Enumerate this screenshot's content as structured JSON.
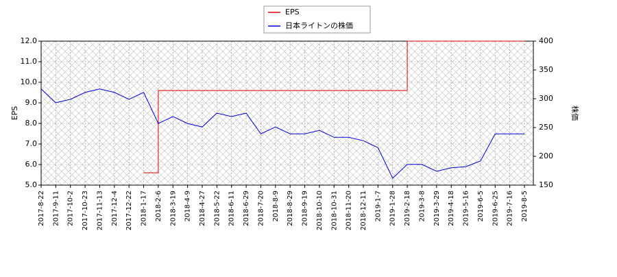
{
  "chart_data": {
    "type": "line",
    "categories": [
      "2017-8-22",
      "2017-9-11",
      "2017-10-2",
      "2017-10-23",
      "2017-11-13",
      "2017-12-4",
      "2017-12-22",
      "2018-1-17",
      "2018-2-6",
      "2018-3-19",
      "2018-4-9",
      "2018-4-27",
      "2018-5-22",
      "2018-6-11",
      "2018-6-29",
      "2018-7-20",
      "2018-8-9",
      "2018-8-29",
      "2018-9-19",
      "2018-10-10",
      "2018-10-31",
      "2018-11-20",
      "2018-12-11",
      "2019-1-7",
      "2019-1-28",
      "2019-2-18",
      "2019-3-8",
      "2019-3-29",
      "2019-4-18",
      "2019-5-16",
      "2019-6-5",
      "2019-6-25",
      "2019-7-16",
      "2019-8-5"
    ],
    "y_label": "EPS",
    "y2_label": "株価",
    "ylim": [
      5,
      12
    ],
    "yticks": [
      {
        "value": 5,
        "label": "5.0"
      },
      {
        "value": 6,
        "label": "6.0"
      },
      {
        "value": 7,
        "label": "7.0"
      },
      {
        "value": 8,
        "label": "8.0"
      },
      {
        "value": 9,
        "label": "9.0"
      },
      {
        "value": 10,
        "label": "10.0"
      },
      {
        "value": 11,
        "label": "11.0"
      },
      {
        "value": 12,
        "label": "12.0"
      }
    ],
    "y2lim": [
      150,
      400
    ],
    "y2ticks": [
      150,
      200,
      250,
      300,
      350,
      400
    ],
    "grid": true,
    "legend": "top",
    "series": [
      {
        "name": "EPS",
        "color": "#dd0000",
        "step": true,
        "values": [
          null,
          null,
          null,
          null,
          null,
          null,
          null,
          5.6,
          9.6,
          9.6,
          9.6,
          9.6,
          9.6,
          9.6,
          9.6,
          9.6,
          9.6,
          9.6,
          9.6,
          9.6,
          9.6,
          9.6,
          9.6,
          9.6,
          9.6,
          12.0,
          12.0,
          12.0,
          12.0,
          12.0,
          12.0,
          12.0,
          12.0,
          12.0
        ]
      },
      {
        "name": "日本ライトンの株価",
        "color": "#0000dd",
        "axis": "y2",
        "values": [
          317,
          293,
          299,
          311,
          317,
          311,
          299,
          311,
          257,
          269,
          257,
          251,
          275,
          269,
          275,
          239,
          251,
          239,
          239,
          245,
          233,
          233,
          227,
          215,
          162,
          186,
          186,
          174,
          180,
          182,
          192,
          239,
          239,
          239
        ]
      }
    ]
  }
}
